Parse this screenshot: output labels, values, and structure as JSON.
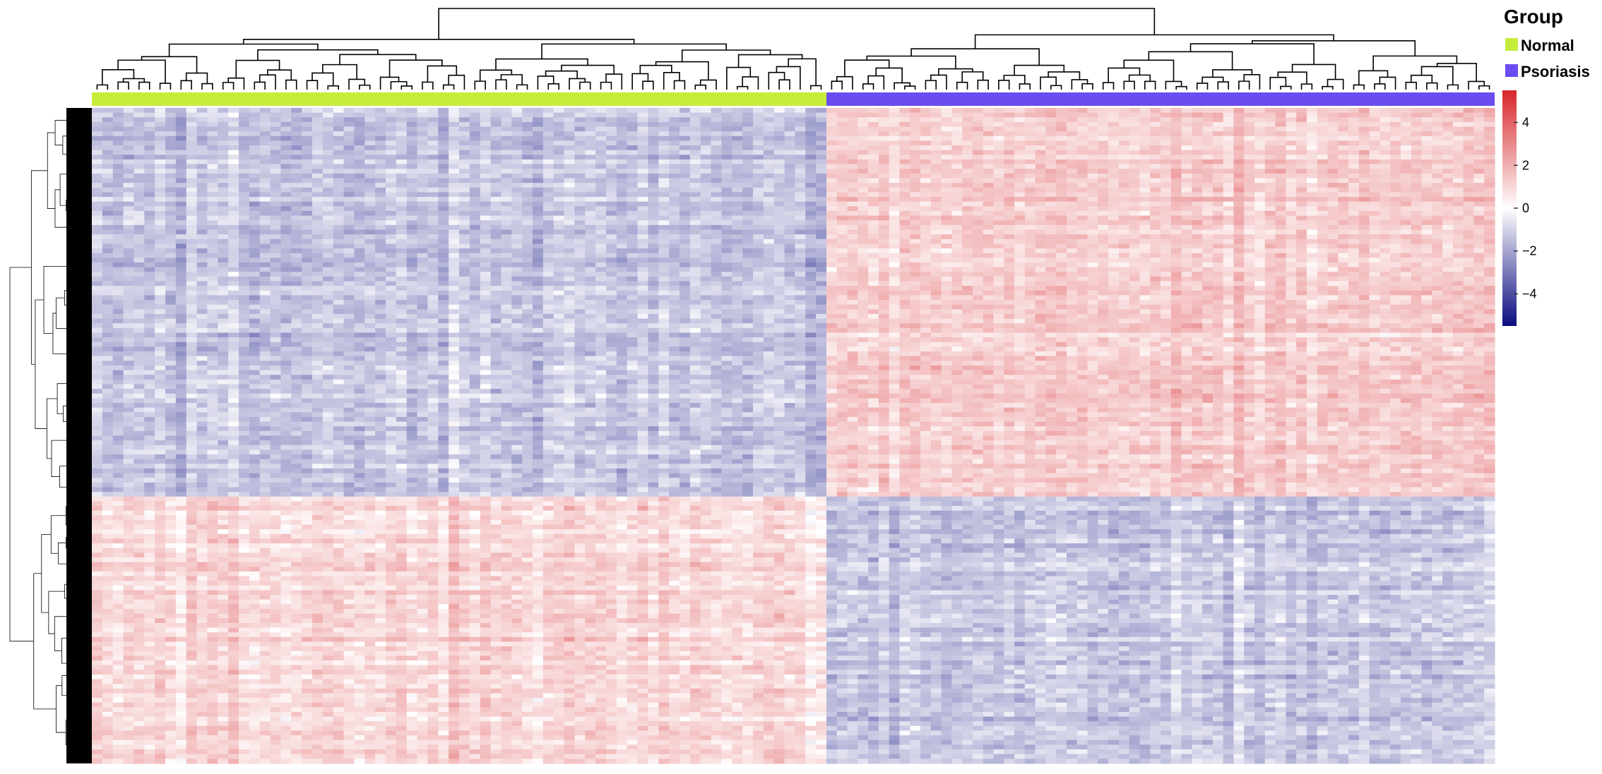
{
  "chart_data": {
    "type": "heatmap",
    "title": "",
    "row_count_approx": 600,
    "column_groups": [
      {
        "name": "Normal",
        "columns": 70,
        "color": "#c6ec3b"
      },
      {
        "name": "Psoriasis",
        "columns": 64,
        "color": "#6a4cf0"
      }
    ],
    "row_clusters": [
      {
        "name": "",
        "row_fraction": 0.59,
        "normal_mean": -1.3,
        "psoriasis_mean": 1.3
      },
      {
        "name": "",
        "row_fraction": 0.41,
        "normal_mean": 1.0,
        "psoriasis_mean": -1.2
      }
    ],
    "color_scale": {
      "min": -5.5,
      "max": 5.5,
      "low_color": "#0b0b80",
      "mid_color": "#ffffff",
      "high_color": "#d7262a",
      "ticks": [
        4,
        2,
        0,
        -2,
        -4
      ],
      "tick_labels": [
        "4",
        "2",
        "0",
        "−2",
        "−4"
      ]
    },
    "dendrograms": {
      "columns": "top",
      "rows": "left"
    },
    "legend": {
      "title": "Group",
      "entries": [
        {
          "label": "Normal",
          "color": "#c6ec3b"
        },
        {
          "label": "Psoriasis",
          "color": "#6a4cf0"
        }
      ],
      "placement": "top-right"
    }
  }
}
